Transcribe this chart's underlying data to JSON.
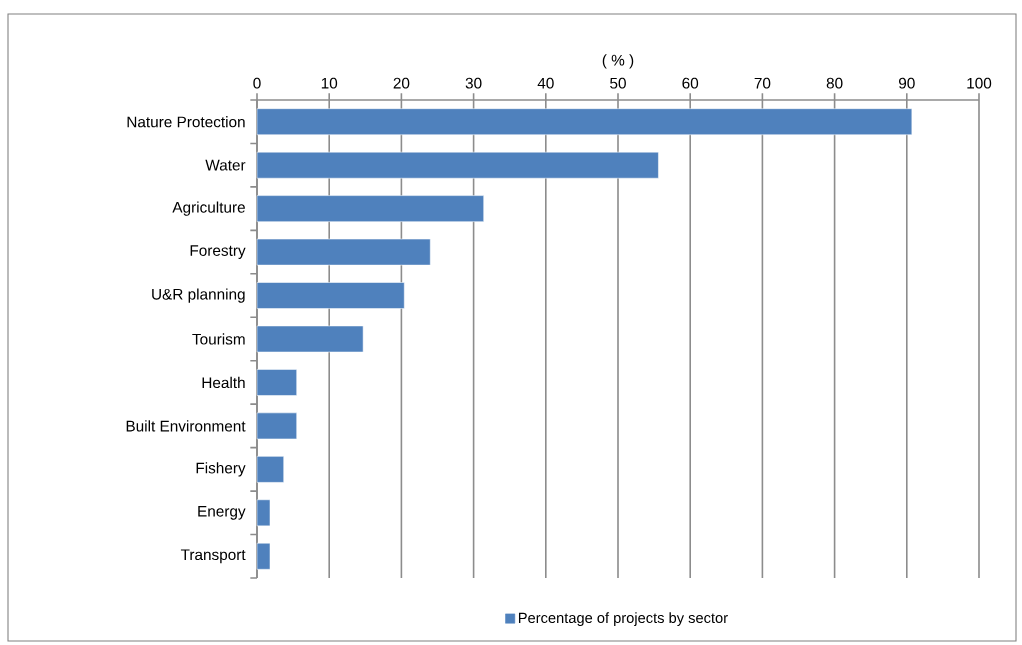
{
  "chart_data": {
    "type": "bar",
    "orientation": "horizontal",
    "xlabel": "( % )",
    "categories": [
      "Nature Protection",
      "Water",
      "Agriculture",
      "Forestry",
      "U&R planning",
      "Tourism",
      "Health",
      "Built Environment",
      "Fishery",
      "Energy",
      "Transport"
    ],
    "series": [
      {
        "name": "Percentage of projects by sector",
        "color": "#4f81bd",
        "values": [
          90.7,
          55.6,
          31.4,
          24.0,
          20.4,
          14.7,
          5.5,
          5.5,
          3.7,
          1.8,
          1.8
        ]
      }
    ],
    "xlim": [
      0,
      100
    ],
    "xticks": [
      0,
      10,
      20,
      30,
      40,
      50,
      60,
      70,
      80,
      90,
      100
    ],
    "grid": "x",
    "legend": "bottom"
  }
}
